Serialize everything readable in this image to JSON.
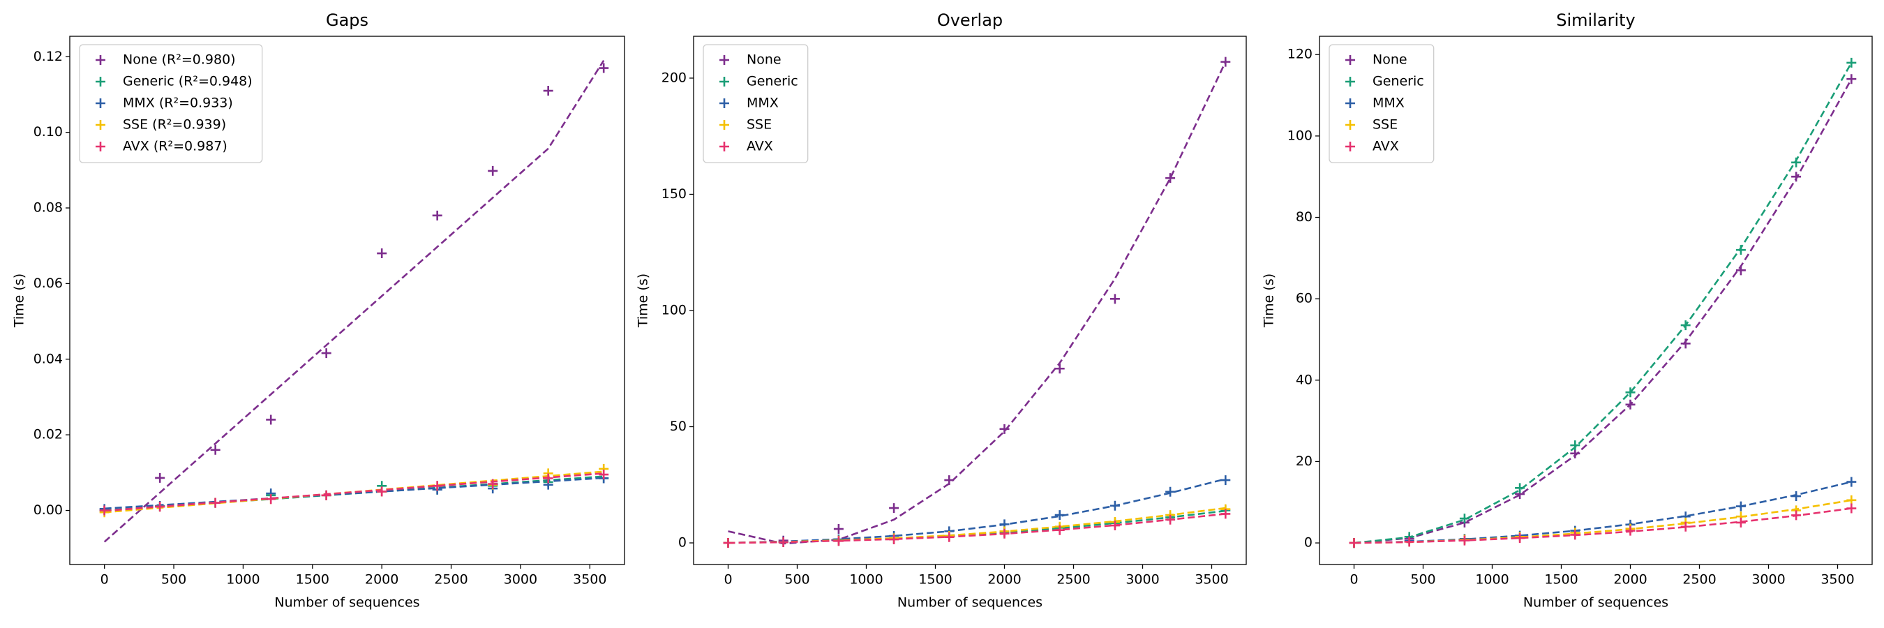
{
  "chart_data": [
    {
      "type": "scatter",
      "title": "Gaps",
      "x_label": "Number of sequences",
      "y_label": "Time (s)",
      "legend": "upper left",
      "x": [
        0,
        400,
        800,
        1200,
        1600,
        2000,
        2400,
        2800,
        3200,
        3600
      ],
      "xlim": [
        -250,
        3750
      ],
      "xticks": [
        0,
        500,
        1000,
        1500,
        2000,
        2500,
        3000,
        3500
      ],
      "ylim": [
        -0.0143,
        0.1254
      ],
      "yticks": [
        {
          "value": 0,
          "label": "0.00"
        },
        {
          "value": 0.02,
          "label": "0.02"
        },
        {
          "value": 0.04,
          "label": "0.04"
        },
        {
          "value": 0.06,
          "label": "0.06"
        },
        {
          "value": 0.08,
          "label": "0.08"
        },
        {
          "value": 0.1,
          "label": "0.10"
        },
        {
          "value": 0.12,
          "label": "0.12"
        }
      ],
      "series": [
        {
          "name": "None (R²=0.980)",
          "color": "#7d2e8d",
          "values": [
            0.0,
            0.0086,
            0.016,
            0.024,
            0.0416,
            0.068,
            0.078,
            0.0898,
            0.111,
            0.117
          ],
          "fit": [
            -0.0083,
            0.0047,
            0.0177,
            0.0307,
            0.0437,
            0.0567,
            0.0697,
            0.0827,
            0.0957,
            0.119
          ]
        },
        {
          "name": "Generic (R²=0.948)",
          "color": "#1a9e77",
          "values": [
            0.0,
            0.001,
            0.002,
            0.004,
            0.004,
            0.0065,
            0.0055,
            0.0065,
            0.0075,
            0.0085
          ],
          "fit": [
            0.0,
            0.001,
            0.002,
            0.003,
            0.004,
            0.005,
            0.006,
            0.007,
            0.008,
            0.009
          ]
        },
        {
          "name": "MMX (R²=0.933)",
          "color": "#2d5fa6",
          "values": [
            0.0004,
            0.0012,
            0.002,
            0.0045,
            0.004,
            0.005,
            0.0055,
            0.0058,
            0.0068,
            0.0085
          ],
          "fit": [
            0.0005,
            0.0014,
            0.0023,
            0.0032,
            0.0041,
            0.005,
            0.0059,
            0.0068,
            0.0077,
            0.0086
          ]
        },
        {
          "name": "SSE (R²=0.939)",
          "color": "#f5c000",
          "values": [
            -0.0005,
            0.001,
            0.002,
            0.003,
            0.004,
            0.005,
            0.0065,
            0.0068,
            0.0098,
            0.011
          ],
          "fit": [
            -0.0005,
            0.0007,
            0.0019,
            0.0031,
            0.0043,
            0.0055,
            0.0067,
            0.0079,
            0.0091,
            0.0103
          ]
        },
        {
          "name": "AVX (R²=0.987)",
          "color": "#e6326e",
          "values": [
            0.0,
            0.001,
            0.002,
            0.003,
            0.004,
            0.005,
            0.0065,
            0.007,
            0.0085,
            0.0095
          ],
          "fit": [
            -0.0001,
            0.001,
            0.0021,
            0.0032,
            0.0043,
            0.0054,
            0.0065,
            0.0076,
            0.0087,
            0.0098
          ]
        }
      ]
    },
    {
      "type": "scatter",
      "title": "Overlap",
      "x_label": "Number of sequences",
      "y_label": "Time (s)",
      "legend": "upper left",
      "x": [
        0,
        400,
        800,
        1200,
        1600,
        2000,
        2400,
        2800,
        3200,
        3600
      ],
      "xlim": [
        -250,
        3750
      ],
      "xticks": [
        0,
        500,
        1000,
        1500,
        2000,
        2500,
        3000,
        3500
      ],
      "ylim": [
        -9.3,
        218
      ],
      "yticks": [
        0,
        50,
        100,
        150,
        200
      ],
      "series": [
        {
          "name": "None",
          "color": "#7d2e8d",
          "values": [
            0,
            1,
            6,
            15,
            27,
            49,
            75,
            105,
            157,
            207
          ],
          "fit": [
            5,
            -0.3,
            1.4,
            10,
            25.5,
            48,
            77.4,
            113.7,
            156.9,
            207
          ]
        },
        {
          "name": "Generic",
          "color": "#1a9e77",
          "values": [
            0,
            0.3,
            1,
            1.8,
            3,
            4.5,
            6.5,
            8.5,
            11,
            14
          ],
          "fit": [
            0,
            0.4,
            1,
            1.9,
            3,
            4.5,
            6.3,
            8.5,
            11,
            13.8
          ]
        },
        {
          "name": "MMX",
          "color": "#2d5fa6",
          "values": [
            0,
            0.5,
            1.5,
            3,
            5,
            8,
            12,
            16,
            22,
            27
          ],
          "fit": [
            0,
            0.6,
            1.6,
            3,
            5,
            7.9,
            11.5,
            16,
            21.5,
            27.5
          ]
        },
        {
          "name": "SSE",
          "color": "#f5c000",
          "values": [
            0,
            0.3,
            1,
            2,
            3,
            5,
            7,
            9,
            12,
            14.5
          ],
          "fit": [
            0,
            0.4,
            1.1,
            2,
            3.2,
            4.9,
            7,
            9.3,
            12,
            15
          ]
        },
        {
          "name": "AVX",
          "color": "#e6326e",
          "values": [
            0,
            0.3,
            0.8,
            1.5,
            2.5,
            4,
            5.5,
            7.5,
            10,
            12.5
          ],
          "fit": [
            0,
            0.3,
            0.9,
            1.6,
            2.6,
            3.9,
            5.6,
            7.6,
            10,
            12.5
          ]
        }
      ]
    },
    {
      "type": "scatter",
      "title": "Similarity",
      "x_label": "Number of sequences",
      "y_label": "Time (s)",
      "legend": "upper left",
      "x": [
        0,
        400,
        800,
        1200,
        1600,
        2000,
        2400,
        2800,
        3200,
        3600
      ],
      "xlim": [
        -250,
        3750
      ],
      "xticks": [
        0,
        500,
        1000,
        1500,
        2000,
        2500,
        3000,
        3500
      ],
      "ylim": [
        -5.3,
        124.5
      ],
      "yticks": [
        0,
        20,
        40,
        60,
        80,
        100,
        120
      ],
      "series": [
        {
          "name": "None",
          "color": "#7d2e8d",
          "values": [
            0,
            1,
            5,
            12,
            22,
            34,
            49,
            67,
            90,
            114
          ],
          "fit": [
            0,
            1.2,
            5,
            11.8,
            21.5,
            34,
            49.5,
            68,
            89.5,
            114
          ]
        },
        {
          "name": "Generic",
          "color": "#1a9e77",
          "values": [
            0,
            1.5,
            6,
            13.5,
            24,
            37,
            53.5,
            72,
            93.5,
            118
          ],
          "fit": [
            0,
            1.4,
            5.7,
            13,
            23.5,
            37,
            53.5,
            72.5,
            94,
            118
          ]
        },
        {
          "name": "MMX",
          "color": "#2d5fa6",
          "values": [
            0,
            0.5,
            1,
            1.8,
            3,
            4.5,
            6.5,
            9,
            11.5,
            15
          ],
          "fit": [
            0,
            0.3,
            0.9,
            1.8,
            3,
            4.6,
            6.6,
            9,
            11.8,
            15
          ]
        },
        {
          "name": "SSE",
          "color": "#f5c000",
          "values": [
            0,
            0.3,
            0.8,
            1.5,
            2.5,
            3.5,
            5,
            6.5,
            8,
            10.5
          ],
          "fit": [
            0,
            0.2,
            0.7,
            1.4,
            2.3,
            3.4,
            4.8,
            6.4,
            8.3,
            10.5
          ]
        },
        {
          "name": "AVX",
          "color": "#e6326e",
          "values": [
            0,
            0.3,
            0.6,
            1.2,
            2,
            3,
            4,
            5,
            6.8,
            8.5
          ],
          "fit": [
            0,
            0.2,
            0.6,
            1.2,
            1.9,
            2.8,
            3.9,
            5.2,
            6.7,
            8.5
          ]
        }
      ]
    }
  ]
}
